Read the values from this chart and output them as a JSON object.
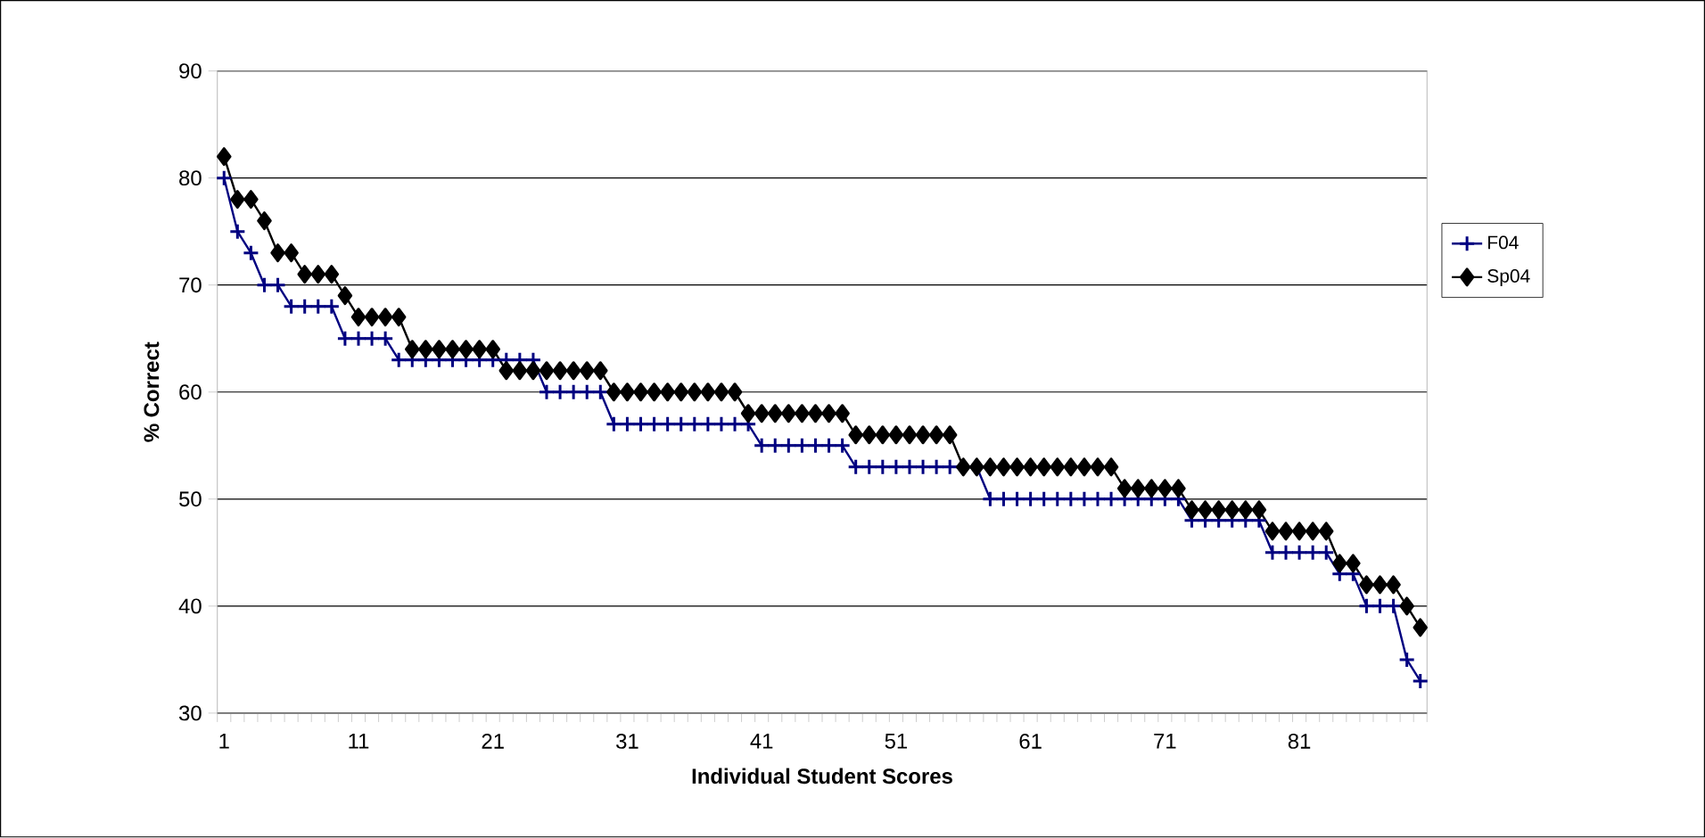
{
  "chart_data": {
    "type": "line",
    "xlabel": "Individual Student Scores",
    "ylabel": "% Correct",
    "categories": [
      "1",
      null,
      null,
      null,
      null,
      null,
      null,
      null,
      null,
      null,
      "11",
      null,
      null,
      null,
      null,
      null,
      null,
      null,
      null,
      null,
      "21",
      null,
      null,
      null,
      null,
      null,
      null,
      null,
      null,
      null,
      "31",
      null,
      null,
      null,
      null,
      null,
      null,
      null,
      null,
      null,
      "41",
      null,
      null,
      null,
      null,
      null,
      null,
      null,
      null,
      null,
      "51",
      null,
      null,
      null,
      null,
      null,
      null,
      null,
      null,
      null,
      "61",
      null,
      null,
      null,
      null,
      null,
      null,
      null,
      null,
      null,
      "71",
      null,
      null,
      null,
      null,
      null,
      null,
      null,
      null,
      null,
      "81",
      null,
      null,
      null,
      null,
      null,
      null,
      null,
      null,
      null
    ],
    "series": [
      {
        "name": "F04",
        "color": "#000080",
        "marker": "cross",
        "values": [
          80,
          75,
          73,
          70,
          70,
          68,
          68,
          68,
          68,
          65,
          65,
          65,
          65,
          63,
          63,
          63,
          63,
          63,
          63,
          63,
          63,
          63,
          63,
          63,
          60,
          60,
          60,
          60,
          60,
          57,
          57,
          57,
          57,
          57,
          57,
          57,
          57,
          57,
          57,
          57,
          55,
          55,
          55,
          55,
          55,
          55,
          55,
          53,
          53,
          53,
          53,
          53,
          53,
          53,
          53,
          53,
          53,
          50,
          50,
          50,
          50,
          50,
          50,
          50,
          50,
          50,
          50,
          50,
          50,
          50,
          50,
          50,
          48,
          48,
          48,
          48,
          48,
          48,
          45,
          45,
          45,
          45,
          45,
          43,
          43,
          40,
          40,
          40,
          35,
          33
        ]
      },
      {
        "name": "Sp04",
        "color": "#000000",
        "marker": "diamond",
        "values": [
          82,
          78,
          78,
          76,
          73,
          73,
          71,
          71,
          71,
          69,
          67,
          67,
          67,
          67,
          64,
          64,
          64,
          64,
          64,
          64,
          64,
          62,
          62,
          62,
          62,
          62,
          62,
          62,
          62,
          60,
          60,
          60,
          60,
          60,
          60,
          60,
          60,
          60,
          60,
          58,
          58,
          58,
          58,
          58,
          58,
          58,
          58,
          56,
          56,
          56,
          56,
          56,
          56,
          56,
          56,
          53,
          53,
          53,
          53,
          53,
          53,
          53,
          53,
          53,
          53,
          53,
          53,
          51,
          51,
          51,
          51,
          51,
          49,
          49,
          49,
          49,
          49,
          49,
          47,
          47,
          47,
          47,
          47,
          44,
          44,
          42,
          42,
          42,
          40,
          38
        ]
      }
    ],
    "ylim": [
      30,
      90
    ],
    "yticks": [
      30,
      40,
      50,
      60,
      70,
      80,
      90
    ],
    "grid": "y",
    "legend": "right"
  }
}
